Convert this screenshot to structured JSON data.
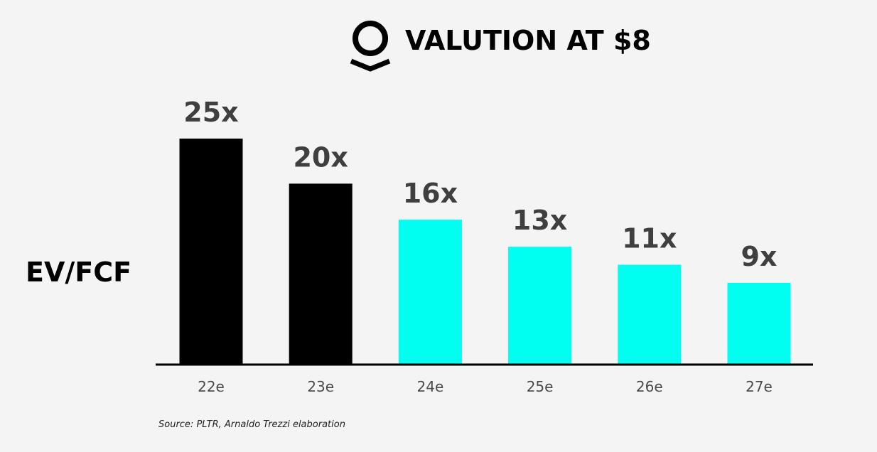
{
  "header": {
    "logo_icon": "palantir-logo-icon",
    "title": "VALUTION AT $8"
  },
  "source": "Source: PLTR, Arnaldo Trezzi elaboration",
  "colors": {
    "background": "#f4f4f4",
    "actual": "#000000",
    "estimate": "#00fff0",
    "value_label": "#3f3f3f",
    "tick_label": "#4a4a4a"
  },
  "chart_data": {
    "type": "bar",
    "title": "VALUTION AT $8",
    "ylabel": "EV/FCF",
    "xlabel": "",
    "categories": [
      "22e",
      "23e",
      "24e",
      "25e",
      "26e",
      "27e"
    ],
    "values": [
      25,
      20,
      16,
      13,
      11,
      9
    ],
    "data_labels": [
      "25x",
      "20x",
      "16x",
      "13x",
      "11x",
      "9x"
    ],
    "bar_colors": [
      "#000000",
      "#000000",
      "#00fff0",
      "#00fff0",
      "#00fff0",
      "#00fff0"
    ],
    "ylim": [
      0,
      25
    ],
    "grid": false,
    "legend": "none"
  }
}
